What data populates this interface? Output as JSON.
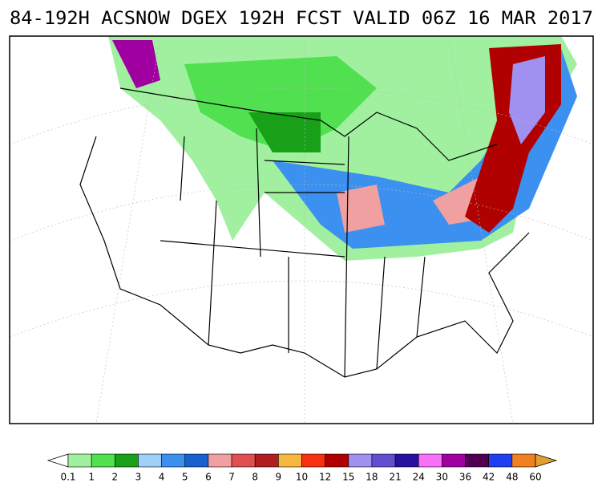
{
  "header": {
    "title": "84-192H ACSNOW DGEX 192H FCST VALID 06Z 16 MAR 2017"
  },
  "colorbar": {
    "labels": [
      "0.1",
      "1",
      "2",
      "3",
      "4",
      "5",
      "6",
      "7",
      "8",
      "9",
      "10",
      "12",
      "15",
      "18",
      "21",
      "24",
      "30",
      "36",
      "42",
      "48",
      "60"
    ],
    "colors": [
      "#a0f0a0",
      "#50e050",
      "#18a018",
      "#a0d0f8",
      "#3c90f0",
      "#1860d0",
      "#f0a0a0",
      "#e05050",
      "#b02020",
      "#f8b840",
      "#f83010",
      "#b00000",
      "#a090f0",
      "#6050d0",
      "#2810a0",
      "#f870f8",
      "#a000a0",
      "#500050",
      "#2040f0",
      "#f08020",
      "#e0a030"
    ]
  }
}
